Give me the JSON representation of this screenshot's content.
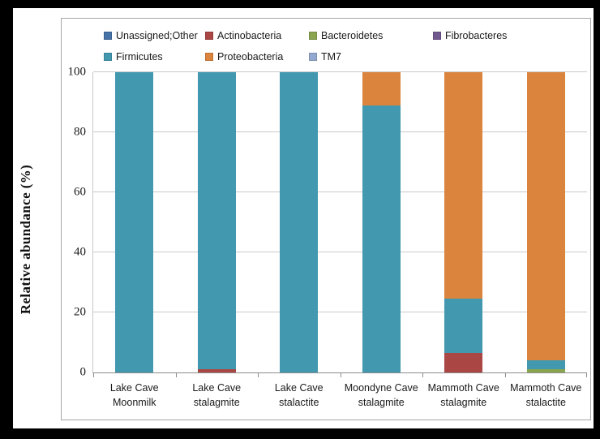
{
  "chart_data": {
    "type": "bar",
    "stacked": true,
    "title": "",
    "xlabel": "",
    "ylabel": "Relative abundance (%)",
    "ylim": [
      0,
      100
    ],
    "yticks": [
      0,
      20,
      40,
      60,
      80,
      100
    ],
    "grid": true,
    "legend_position": "top",
    "categories": [
      "Lake Cave\nMoonmilk",
      "Lake Cave\nstalagmite",
      "Lake Cave\nstalactite",
      "Moondyne Cave\nstalagmite",
      "Mammoth Cave\nstalagmite",
      "Mammoth Cave\nstalactite"
    ],
    "series": [
      {
        "name": "Unassigned;Other",
        "color": "#4572A7",
        "values": [
          0,
          0,
          0,
          0,
          0,
          0
        ]
      },
      {
        "name": "Actinobacteria",
        "color": "#AA4643",
        "values": [
          0,
          1,
          0,
          0,
          6.5,
          0
        ]
      },
      {
        "name": "Bacteroidetes",
        "color": "#89A54E",
        "values": [
          0,
          0,
          0,
          0,
          0,
          1
        ]
      },
      {
        "name": "Fibrobacteres",
        "color": "#71588F",
        "values": [
          0,
          0,
          0,
          0,
          0,
          0
        ]
      },
      {
        "name": "Firmicutes",
        "color": "#4198AF",
        "values": [
          100,
          99,
          100,
          89,
          18,
          3
        ]
      },
      {
        "name": "Proteobacteria",
        "color": "#DB843D",
        "values": [
          0,
          0,
          0,
          11,
          75.5,
          96
        ]
      },
      {
        "name": "TM7",
        "color": "#93A9CF",
        "values": [
          0,
          0,
          0,
          0,
          0,
          0
        ]
      }
    ]
  },
  "style_colors": {
    "gridline": "#c9c9c9",
    "axis_line": "#8c8c8c",
    "panel_border": "#a6a6a6",
    "background_frame": "#000000",
    "panel_background": "#ffffff"
  }
}
